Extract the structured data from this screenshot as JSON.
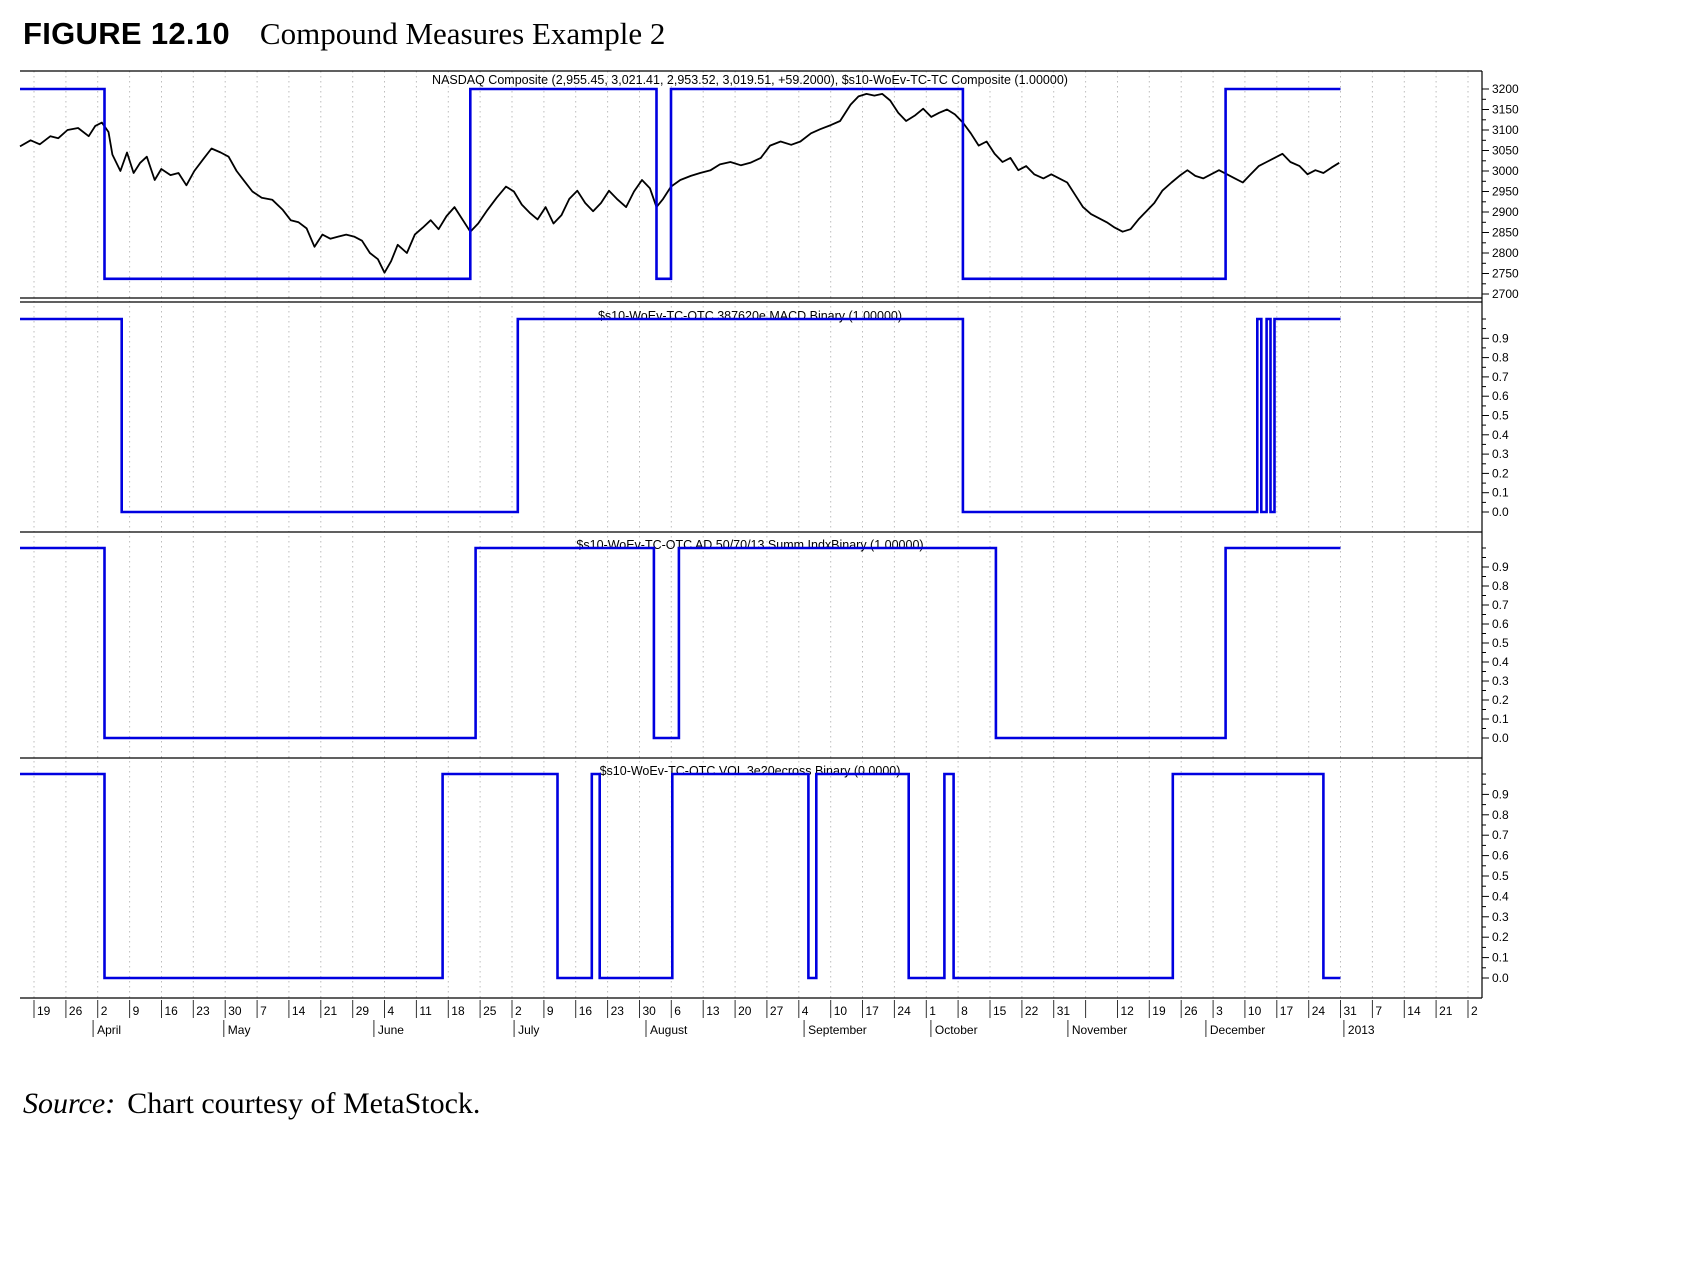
{
  "figure": {
    "label": "FIGURE 12.10",
    "title": "Compound Measures Example 2",
    "source_prefix": "Source:",
    "source_text": "Chart courtesy of MetaStock."
  },
  "chart_data": {
    "type": "line",
    "description": "Four stacked MetaStock panels: NASDAQ Composite price with compound binary overlay, plus three component binary indicators (MACD binary, AD summation index binary, volume cross binary)",
    "colors": {
      "price": "#000000",
      "binary": "#0000e0",
      "grid": "#bdbdbd",
      "axis": "#000000"
    },
    "x_axis": {
      "tick_labels": [
        "19",
        "26",
        "2",
        "9",
        "16",
        "23",
        "30",
        "7",
        "14",
        "21",
        "29",
        "4",
        "11",
        "18",
        "25",
        "2",
        "9",
        "16",
        "23",
        "30",
        "6",
        "13",
        "20",
        "27",
        "4",
        "10",
        "17",
        "24",
        "1",
        "8",
        "15",
        "22",
        "31",
        "",
        "12",
        "19",
        "26",
        "3",
        "10",
        "17",
        "24",
        "31",
        "7",
        "14",
        "21",
        "2"
      ],
      "month_labels": [
        {
          "label": "April",
          "pos": 1.95
        },
        {
          "label": "May",
          "pos": 6.05
        },
        {
          "label": "June",
          "pos": 10.76
        },
        {
          "label": "July",
          "pos": 15.16
        },
        {
          "label": "August",
          "pos": 19.3
        },
        {
          "label": "September",
          "pos": 24.26
        },
        {
          "label": "October",
          "pos": 28.24
        },
        {
          "label": "November",
          "pos": 32.54
        },
        {
          "label": "December",
          "pos": 36.87
        },
        {
          "label": "2013",
          "pos": 41.2
        }
      ],
      "data_end_tick": 41
    },
    "panels": [
      {
        "id": "price",
        "title": "NASDAQ Composite (2,955.45, 3,021.41, 2,953.52, 3,019.51, +59.2000), $s10-WoEv-TC-TC Composite  (1.00000)",
        "y_ticks": [
          3200,
          3150,
          3100,
          3050,
          3000,
          2950,
          2900,
          2850,
          2800,
          2750,
          2700
        ],
        "y_min": 2700,
        "y_max": 3200,
        "y_minor_step": 25,
        "binary_levels": {
          "high": 3200,
          "low": 2737
        },
        "binary_segments": [
          [
            0,
            0.064
          ],
          [
            0.341,
            0.482
          ],
          [
            0.493,
            0.714
          ],
          [
            0.913,
            1.0
          ]
        ],
        "price_points": [
          [
            0.0,
            3060
          ],
          [
            0.008,
            3075
          ],
          [
            0.015,
            3065
          ],
          [
            0.023,
            3085
          ],
          [
            0.029,
            3080
          ],
          [
            0.036,
            3100
          ],
          [
            0.044,
            3105
          ],
          [
            0.052,
            3085
          ],
          [
            0.057,
            3110
          ],
          [
            0.062,
            3118
          ],
          [
            0.067,
            3095
          ],
          [
            0.07,
            3040
          ],
          [
            0.076,
            3000
          ],
          [
            0.081,
            3045
          ],
          [
            0.086,
            2995
          ],
          [
            0.091,
            3020
          ],
          [
            0.096,
            3035
          ],
          [
            0.102,
            2978
          ],
          [
            0.107,
            3005
          ],
          [
            0.114,
            2990
          ],
          [
            0.12,
            2995
          ],
          [
            0.126,
            2965
          ],
          [
            0.132,
            3000
          ],
          [
            0.139,
            3030
          ],
          [
            0.145,
            3055
          ],
          [
            0.152,
            3045
          ],
          [
            0.158,
            3035
          ],
          [
            0.164,
            3000
          ],
          [
            0.17,
            2975
          ],
          [
            0.176,
            2950
          ],
          [
            0.183,
            2935
          ],
          [
            0.191,
            2930
          ],
          [
            0.199,
            2905
          ],
          [
            0.205,
            2880
          ],
          [
            0.211,
            2875
          ],
          [
            0.217,
            2860
          ],
          [
            0.223,
            2815
          ],
          [
            0.229,
            2845
          ],
          [
            0.235,
            2835
          ],
          [
            0.241,
            2840
          ],
          [
            0.247,
            2845
          ],
          [
            0.253,
            2840
          ],
          [
            0.259,
            2830
          ],
          [
            0.265,
            2800
          ],
          [
            0.271,
            2785
          ],
          [
            0.276,
            2752
          ],
          [
            0.281,
            2780
          ],
          [
            0.286,
            2820
          ],
          [
            0.293,
            2800
          ],
          [
            0.299,
            2845
          ],
          [
            0.305,
            2862
          ],
          [
            0.311,
            2880
          ],
          [
            0.317,
            2858
          ],
          [
            0.323,
            2890
          ],
          [
            0.329,
            2912
          ],
          [
            0.335,
            2882
          ],
          [
            0.341,
            2852
          ],
          [
            0.347,
            2872
          ],
          [
            0.354,
            2905
          ],
          [
            0.361,
            2935
          ],
          [
            0.368,
            2962
          ],
          [
            0.374,
            2950
          ],
          [
            0.38,
            2918
          ],
          [
            0.386,
            2898
          ],
          [
            0.392,
            2882
          ],
          [
            0.398,
            2912
          ],
          [
            0.404,
            2872
          ],
          [
            0.41,
            2892
          ],
          [
            0.416,
            2932
          ],
          [
            0.422,
            2952
          ],
          [
            0.428,
            2922
          ],
          [
            0.434,
            2902
          ],
          [
            0.44,
            2922
          ],
          [
            0.446,
            2952
          ],
          [
            0.452,
            2932
          ],
          [
            0.459,
            2912
          ],
          [
            0.465,
            2950
          ],
          [
            0.471,
            2978
          ],
          [
            0.477,
            2958
          ],
          [
            0.482,
            2912
          ],
          [
            0.487,
            2932
          ],
          [
            0.493,
            2962
          ],
          [
            0.5,
            2978
          ],
          [
            0.508,
            2988
          ],
          [
            0.515,
            2995
          ],
          [
            0.523,
            3002
          ],
          [
            0.53,
            3016
          ],
          [
            0.538,
            3022
          ],
          [
            0.546,
            3014
          ],
          [
            0.553,
            3020
          ],
          [
            0.561,
            3032
          ],
          [
            0.568,
            3062
          ],
          [
            0.576,
            3072
          ],
          [
            0.584,
            3064
          ],
          [
            0.591,
            3072
          ],
          [
            0.599,
            3092
          ],
          [
            0.606,
            3102
          ],
          [
            0.614,
            3112
          ],
          [
            0.621,
            3122
          ],
          [
            0.629,
            3162
          ],
          [
            0.635,
            3182
          ],
          [
            0.641,
            3188
          ],
          [
            0.647,
            3184
          ],
          [
            0.653,
            3188
          ],
          [
            0.659,
            3172
          ],
          [
            0.665,
            3142
          ],
          [
            0.671,
            3122
          ],
          [
            0.678,
            3136
          ],
          [
            0.684,
            3152
          ],
          [
            0.69,
            3132
          ],
          [
            0.696,
            3142
          ],
          [
            0.702,
            3150
          ],
          [
            0.708,
            3138
          ],
          [
            0.714,
            3118
          ],
          [
            0.72,
            3092
          ],
          [
            0.726,
            3062
          ],
          [
            0.732,
            3072
          ],
          [
            0.738,
            3042
          ],
          [
            0.744,
            3022
          ],
          [
            0.75,
            3032
          ],
          [
            0.756,
            3002
          ],
          [
            0.762,
            3012
          ],
          [
            0.768,
            2992
          ],
          [
            0.775,
            2982
          ],
          [
            0.781,
            2992
          ],
          [
            0.787,
            2982
          ],
          [
            0.793,
            2972
          ],
          [
            0.799,
            2942
          ],
          [
            0.805,
            2912
          ],
          [
            0.811,
            2895
          ],
          [
            0.817,
            2885
          ],
          [
            0.823,
            2875
          ],
          [
            0.829,
            2862
          ],
          [
            0.835,
            2852
          ],
          [
            0.841,
            2858
          ],
          [
            0.847,
            2882
          ],
          [
            0.853,
            2902
          ],
          [
            0.859,
            2922
          ],
          [
            0.865,
            2952
          ],
          [
            0.872,
            2972
          ],
          [
            0.878,
            2988
          ],
          [
            0.884,
            3002
          ],
          [
            0.89,
            2988
          ],
          [
            0.896,
            2982
          ],
          [
            0.902,
            2992
          ],
          [
            0.908,
            3002
          ],
          [
            0.914,
            2992
          ],
          [
            0.92,
            2982
          ],
          [
            0.926,
            2972
          ],
          [
            0.932,
            2992
          ],
          [
            0.938,
            3012
          ],
          [
            0.944,
            3022
          ],
          [
            0.95,
            3032
          ],
          [
            0.956,
            3042
          ],
          [
            0.962,
            3022
          ],
          [
            0.969,
            3012
          ],
          [
            0.975,
            2992
          ],
          [
            0.981,
            3002
          ],
          [
            0.987,
            2995
          ],
          [
            0.993,
            3008
          ],
          [
            0.999,
            3020
          ]
        ]
      },
      {
        "id": "macd-binary",
        "title": "$s10-WoEv-TC-OTC 387620e MACD Binary  (1.00000)",
        "y_ticks": [
          "0.9",
          "0.8",
          "0.7",
          "0.6",
          "0.5",
          "0.4",
          "0.3",
          "0.2",
          "0.1",
          "0.0"
        ],
        "binary_segments": [
          [
            0,
            0.077
          ],
          [
            0.377,
            0.714
          ],
          [
            0.937,
            0.94
          ],
          [
            0.944,
            0.947
          ],
          [
            0.95,
            1.0
          ]
        ]
      },
      {
        "id": "ad-summ-binary",
        "title": "$s10-WoEv-TC-OTC AD 50/70/13 Summ IndxBinary  (1.00000)",
        "y_ticks": [
          "0.9",
          "0.8",
          "0.7",
          "0.6",
          "0.5",
          "0.4",
          "0.3",
          "0.2",
          "0.1",
          "0.0"
        ],
        "binary_segments": [
          [
            0,
            0.064
          ],
          [
            0.345,
            0.48
          ],
          [
            0.499,
            0.739
          ],
          [
            0.913,
            1.0
          ]
        ]
      },
      {
        "id": "vol-cross-binary",
        "title": "$s10-WoEv-TC-OTC VOL 3e20ecross Binary  (0.0000)",
        "y_ticks": [
          "0.9",
          "0.8",
          "0.7",
          "0.6",
          "0.5",
          "0.4",
          "0.3",
          "0.2",
          "0.1",
          "0.0"
        ],
        "binary_segments": [
          [
            0,
            0.064
          ],
          [
            0.32,
            0.407
          ],
          [
            0.433,
            0.439
          ],
          [
            0.494,
            0.597
          ],
          [
            0.603,
            0.673
          ],
          [
            0.7,
            0.707
          ],
          [
            0.873,
            0.987
          ]
        ]
      }
    ]
  }
}
